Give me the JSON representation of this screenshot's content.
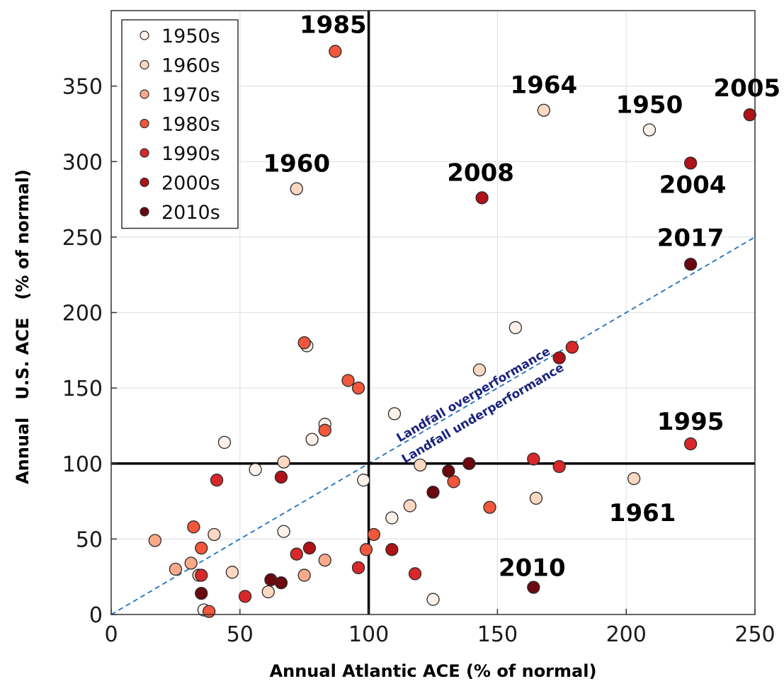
{
  "chart_data": {
    "type": "scatter",
    "xlabel": "Annual Atlantic ACE (% of normal)",
    "ylabel": "Annual   U.S. ACE   (% of normal)",
    "xlim": [
      0,
      250
    ],
    "ylim": [
      0,
      400
    ],
    "xticks": [
      0,
      50,
      100,
      150,
      200,
      250
    ],
    "yticks": [
      0,
      50,
      100,
      150,
      200,
      250,
      300,
      350
    ],
    "grid": true,
    "reference_lines": {
      "x": 100,
      "y": 100
    },
    "diagonal_label_above": "Landfall overperformance",
    "diagonal_label_below": "Landfall underperformance",
    "legend": {
      "placement": "top-left",
      "entries": [
        "1950s",
        "1960s",
        "1970s",
        "1980s",
        "1990s",
        "2000s",
        "2010s"
      ]
    },
    "decade_colors": {
      "1950s": "#fdf1ea",
      "1960s": "#fcd7c2",
      "1970s": "#fba98b",
      "1980s": "#f0573b",
      "1990s": "#d8282a",
      "2000s": "#b01218",
      "2010s": "#6b0810"
    },
    "series": [
      {
        "name": "1950s",
        "points": [
          [
            209,
            321
          ],
          [
            157,
            190
          ],
          [
            76,
            178
          ],
          [
            110,
            133
          ],
          [
            83,
            126
          ],
          [
            78,
            116
          ],
          [
            44,
            114
          ],
          [
            56,
            96
          ],
          [
            98,
            89
          ],
          [
            67,
            55
          ],
          [
            36,
            3
          ],
          [
            125,
            10
          ],
          [
            109,
            64
          ]
        ]
      },
      {
        "name": "1960s",
        "points": [
          [
            168,
            334
          ],
          [
            72,
            282
          ],
          [
            143,
            162
          ],
          [
            203,
            90
          ],
          [
            165,
            77
          ],
          [
            116,
            72
          ],
          [
            120,
            99
          ],
          [
            67,
            101
          ],
          [
            40,
            53
          ],
          [
            47,
            28
          ],
          [
            61,
            15
          ],
          [
            34,
            26
          ]
        ]
      },
      {
        "name": "1970s",
        "points": [
          [
            25,
            30
          ],
          [
            83,
            36
          ],
          [
            75,
            26
          ],
          [
            17,
            49
          ],
          [
            31,
            34
          ]
        ]
      },
      {
        "name": "1980s",
        "points": [
          [
            87,
            373
          ],
          [
            75,
            180
          ],
          [
            92,
            155
          ],
          [
            96,
            150
          ],
          [
            83,
            122
          ],
          [
            133,
            88
          ],
          [
            147,
            71
          ],
          [
            102,
            53
          ],
          [
            99,
            43
          ],
          [
            32,
            58
          ],
          [
            35,
            44
          ],
          [
            38,
            2
          ]
        ]
      },
      {
        "name": "1990s",
        "points": [
          [
            225,
            113
          ],
          [
            179,
            177
          ],
          [
            174,
            98
          ],
          [
            164,
            103
          ],
          [
            41,
            89
          ],
          [
            72,
            40
          ],
          [
            96,
            31
          ],
          [
            118,
            27
          ],
          [
            52,
            12
          ],
          [
            35,
            26
          ]
        ]
      },
      {
        "name": "2000s",
        "points": [
          [
            248,
            331
          ],
          [
            225,
            299
          ],
          [
            144,
            276
          ],
          [
            66,
            91
          ],
          [
            109,
            43
          ],
          [
            77,
            44
          ],
          [
            174,
            170
          ]
        ]
      },
      {
        "name": "2010s",
        "points": [
          [
            225,
            232
          ],
          [
            164,
            18
          ],
          [
            139,
            100
          ],
          [
            131,
            95
          ],
          [
            125,
            81
          ],
          [
            62,
            23
          ],
          [
            66,
            21
          ],
          [
            35,
            14
          ]
        ]
      }
    ],
    "annotations": [
      {
        "text": "1985",
        "x": 87,
        "y": 373
      },
      {
        "text": "1960",
        "x": 72,
        "y": 282
      },
      {
        "text": "1964",
        "x": 168,
        "y": 334
      },
      {
        "text": "1950",
        "x": 209,
        "y": 321
      },
      {
        "text": "2005",
        "x": 248,
        "y": 331
      },
      {
        "text": "2008",
        "x": 144,
        "y": 276
      },
      {
        "text": "2004",
        "x": 225,
        "y": 299
      },
      {
        "text": "2017",
        "x": 225,
        "y": 232
      },
      {
        "text": "1995",
        "x": 225,
        "y": 113
      },
      {
        "text": "1961",
        "x": 203,
        "y": 90
      },
      {
        "text": "2010",
        "x": 164,
        "y": 18
      }
    ]
  }
}
